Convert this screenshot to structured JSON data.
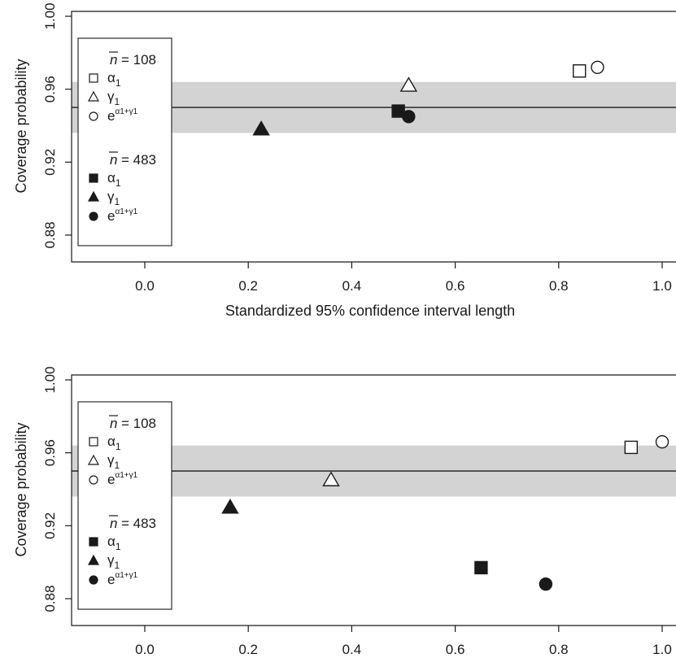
{
  "chart_data": [
    {
      "type": "scatter",
      "xlabel": "Standardized 95% confidence interval length",
      "ylabel": "Coverage probability",
      "xlim": [
        -0.14,
        1.02
      ],
      "ylim": [
        0.86,
        1.0
      ],
      "xticks": [
        "0.0",
        "0.2",
        "0.4",
        "0.6",
        "0.8",
        "1.0"
      ],
      "yticks": [
        "0.88",
        "0.92",
        "0.96",
        "1.00"
      ],
      "reference_line": 0.95,
      "reference_band": [
        0.936,
        0.964
      ],
      "legend": {
        "placement": "left",
        "groups": [
          {
            "header_n": "n",
            "header_value": "= 108",
            "entries": [
              {
                "marker": "open-square",
                "label": "α",
                "sub": "1"
              },
              {
                "marker": "open-triangle",
                "label": "γ",
                "sub": "1"
              },
              {
                "marker": "open-circle",
                "label": "e",
                "sup": "α1+γ1"
              }
            ]
          },
          {
            "header_n": "n",
            "header_value": "= 483",
            "entries": [
              {
                "marker": "filled-square",
                "label": "α",
                "sub": "1"
              },
              {
                "marker": "filled-triangle",
                "label": "γ",
                "sub": "1"
              },
              {
                "marker": "filled-circle",
                "label": "e",
                "sup": "α1+γ1"
              }
            ]
          }
        ]
      },
      "points": [
        {
          "group": "108",
          "marker": "open-square",
          "x": 0.84,
          "y": 0.97
        },
        {
          "group": "108",
          "marker": "open-triangle",
          "x": 0.51,
          "y": 0.962
        },
        {
          "group": "108",
          "marker": "open-circle",
          "x": 0.875,
          "y": 0.972
        },
        {
          "group": "483",
          "marker": "filled-square",
          "x": 0.49,
          "y": 0.948
        },
        {
          "group": "483",
          "marker": "filled-triangle",
          "x": 0.225,
          "y": 0.938
        },
        {
          "group": "483",
          "marker": "filled-circle",
          "x": 0.51,
          "y": 0.945
        }
      ]
    },
    {
      "type": "scatter",
      "xlabel": "Standardized 95% confidence interval length",
      "ylabel": "Coverage probability",
      "xlim": [
        -0.14,
        1.02
      ],
      "ylim": [
        0.86,
        1.0
      ],
      "xticks": [
        "0.0",
        "0.2",
        "0.4",
        "0.6",
        "0.8",
        "1.0"
      ],
      "yticks": [
        "0.88",
        "0.92",
        "0.96",
        "1.00"
      ],
      "reference_line": 0.95,
      "reference_band": [
        0.936,
        0.964
      ],
      "legend": {
        "placement": "left",
        "groups": [
          {
            "header_n": "n",
            "header_value": "= 108",
            "entries": [
              {
                "marker": "open-square",
                "label": "α",
                "sub": "1"
              },
              {
                "marker": "open-triangle",
                "label": "γ",
                "sub": "1"
              },
              {
                "marker": "open-circle",
                "label": "e",
                "sup": "α1+γ1"
              }
            ]
          },
          {
            "header_n": "n",
            "header_value": "= 483",
            "entries": [
              {
                "marker": "filled-square",
                "label": "α",
                "sub": "1"
              },
              {
                "marker": "filled-triangle",
                "label": "γ",
                "sub": "1"
              },
              {
                "marker": "filled-circle",
                "label": "e",
                "sup": "α1+γ1"
              }
            ]
          }
        ]
      },
      "points": [
        {
          "group": "108",
          "marker": "open-square",
          "x": 0.94,
          "y": 0.963
        },
        {
          "group": "108",
          "marker": "open-triangle",
          "x": 0.36,
          "y": 0.945
        },
        {
          "group": "108",
          "marker": "open-circle",
          "x": 1.0,
          "y": 0.966
        },
        {
          "group": "483",
          "marker": "filled-square",
          "x": 0.65,
          "y": 0.897
        },
        {
          "group": "483",
          "marker": "filled-triangle",
          "x": 0.165,
          "y": 0.93
        },
        {
          "group": "483",
          "marker": "filled-circle",
          "x": 0.775,
          "y": 0.888
        }
      ]
    }
  ],
  "colors": {
    "band": "#d3d3d3",
    "axis": "#1a1a1a",
    "marker": "#1a1a1a"
  }
}
